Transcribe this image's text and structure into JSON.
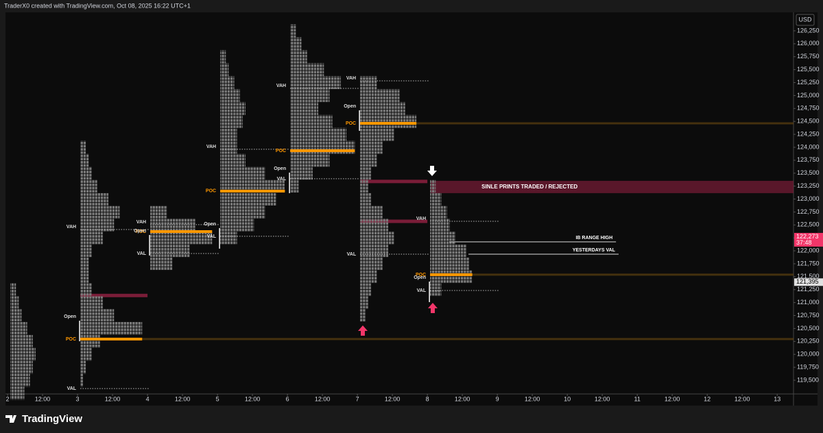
{
  "chart_data": {
    "type": "market-profile",
    "title": "TraderX0 created with TradingView.com, Oct 08, 2025 16:22 UTC+1",
    "currency": "USD",
    "watermark": "TradingView",
    "ylim": [
      119235,
      126607
    ],
    "yticks": [
      {
        "value": 119500,
        "label": "119,500"
      },
      {
        "value": 119750,
        "label": "119,750"
      },
      {
        "value": 120000,
        "label": "120,000"
      },
      {
        "value": 120250,
        "label": "120,250"
      },
      {
        "value": 120500,
        "label": "120,500"
      },
      {
        "value": 120750,
        "label": "120,750"
      },
      {
        "value": 121000,
        "label": "121,000"
      },
      {
        "value": 121250,
        "label": "121,250"
      },
      {
        "value": 121500,
        "label": "121,500"
      },
      {
        "value": 121750,
        "label": "121,750"
      },
      {
        "value": 122000,
        "label": "122,000"
      },
      {
        "value": 122250,
        "label": "122,250"
      },
      {
        "value": 122500,
        "label": "122,500"
      },
      {
        "value": 122750,
        "label": "122,750"
      },
      {
        "value": 123000,
        "label": "123,000"
      },
      {
        "value": 123250,
        "label": "123,250"
      },
      {
        "value": 123500,
        "label": "123,500"
      },
      {
        "value": 123750,
        "label": "123,750"
      },
      {
        "value": 124000,
        "label": "124,000"
      },
      {
        "value": 124250,
        "label": "124,250"
      },
      {
        "value": 124500,
        "label": "124,500"
      },
      {
        "value": 124750,
        "label": "124,750"
      },
      {
        "value": 125000,
        "label": "125,000"
      },
      {
        "value": 125250,
        "label": "125,250"
      },
      {
        "value": 125500,
        "label": "125,500"
      },
      {
        "value": 125750,
        "label": "125,750"
      },
      {
        "value": 126000,
        "label": "126,000"
      },
      {
        "value": 126250,
        "label": "126,250"
      }
    ],
    "xlim": [
      -2.6,
      269.6
    ],
    "xticks": [
      {
        "value": 0,
        "label": "2"
      },
      {
        "value": 12,
        "label": "12:00"
      },
      {
        "value": 24,
        "label": "3"
      },
      {
        "value": 36,
        "label": "12:00"
      },
      {
        "value": 48,
        "label": "4"
      },
      {
        "value": 60,
        "label": "12:00"
      },
      {
        "value": 72,
        "label": "5"
      },
      {
        "value": 84,
        "label": "12:00"
      },
      {
        "value": 96,
        "label": "6"
      },
      {
        "value": 108,
        "label": "12:00"
      },
      {
        "value": 120,
        "label": "7"
      },
      {
        "value": 132,
        "label": "12:00"
      },
      {
        "value": 144,
        "label": "8"
      },
      {
        "value": 156,
        "label": "12:00"
      },
      {
        "value": 168,
        "label": "9"
      },
      {
        "value": 180,
        "label": "12:00"
      },
      {
        "value": 192,
        "label": "10"
      },
      {
        "value": 204,
        "label": "12:00"
      },
      {
        "value": 216,
        "label": "11"
      },
      {
        "value": 228,
        "label": "12:00"
      },
      {
        "value": 240,
        "label": "12"
      },
      {
        "value": 252,
        "label": "12:00"
      },
      {
        "value": 264,
        "label": "13"
      }
    ],
    "level_names": {
      "vah": "VAH",
      "poc": "POC",
      "val": "VAL",
      "open": "Open"
    },
    "profile_color": "#7a7a7a",
    "poc_color": "#ff9800",
    "single_print_color": "#7a1d38",
    "sessions": [
      {
        "x": 0,
        "prices": [
          119250,
          119500,
          119750,
          120000,
          120250,
          120500,
          120750,
          121000,
          121250
        ],
        "counts": [
          5,
          7,
          8,
          9,
          8,
          6,
          4,
          3,
          2
        ]
      },
      {
        "x": 24,
        "prices": [
          119500,
          119750,
          120000,
          120250,
          120500,
          120750,
          121000,
          121250,
          121500,
          121750,
          122000,
          122250,
          122500,
          122750,
          123000,
          123250,
          123500,
          123750,
          124000
        ],
        "counts": [
          1,
          2,
          4,
          7,
          22,
          12,
          8,
          4,
          3,
          3,
          4,
          8,
          12,
          14,
          10,
          6,
          4,
          3,
          2
        ],
        "vah": 122412,
        "poc": 120295,
        "val": 119340,
        "open": 120650,
        "poc_extended": true
      },
      {
        "x": 48,
        "prices": [
          121750,
          122000,
          122250,
          122500,
          122750
        ],
        "counts": [
          8,
          14,
          22,
          16,
          6
        ],
        "vah": 122505,
        "poc": 122372,
        "val": 121949,
        "open": 122306
      },
      {
        "x": 72,
        "prices": [
          122250,
          122500,
          122750,
          123000,
          123250,
          123500,
          123750,
          124000,
          124250,
          124500,
          124750,
          125000,
          125250,
          125500,
          125750
        ],
        "counts": [
          6,
          12,
          16,
          20,
          23,
          16,
          9,
          6,
          6,
          8,
          9,
          7,
          5,
          3,
          2
        ],
        "vah": 123961,
        "poc": 123154,
        "val": 122280,
        "open": 122439
      },
      {
        "x": 96,
        "prices": [
          123250,
          123500,
          123750,
          124000,
          124250,
          124500,
          124750,
          125000,
          125250,
          125500,
          125750,
          126000,
          126250
        ],
        "counts": [
          3,
          8,
          14,
          23,
          20,
          15,
          10,
          14,
          18,
          12,
          6,
          4,
          2
        ],
        "vah": 125138,
        "poc": 123934,
        "val": 123392,
        "open": 123511
      },
      {
        "x": 120,
        "prices": [
          120750,
          121000,
          121250,
          121500,
          121750,
          122000,
          122250,
          122500,
          122750,
          123000,
          123250,
          123500,
          123750,
          124000,
          124250,
          124500,
          124750,
          125000,
          125250
        ],
        "counts": [
          2,
          3,
          4,
          6,
          8,
          10,
          12,
          10,
          8,
          4,
          3,
          4,
          6,
          8,
          12,
          20,
          16,
          14,
          6
        ],
        "vah": 125284,
        "poc": 124463,
        "val": 121935,
        "open": 124715,
        "poc_extended": true
      },
      {
        "x": 144,
        "prices": [
          121250,
          121500,
          121750,
          122000,
          122250,
          122500,
          122750,
          123000,
          123250
        ],
        "counts": [
          4,
          15,
          14,
          13,
          9,
          7,
          6,
          4,
          2
        ],
        "vah": 122571,
        "poc": 121539,
        "val": 121234,
        "open": 121406,
        "poc_extended": true
      }
    ],
    "single_prints": [
      {
        "price": 121137,
        "from": 24,
        "to": 48
      },
      {
        "price": 123340,
        "from": 120,
        "to": 144
      },
      {
        "price": 122570,
        "from": 120,
        "to": 144
      }
    ],
    "band": {
      "text": "SINLE PRINTS TRADED / REJECTED",
      "low": 123114,
      "high": 123352,
      "from": 145,
      "to": 269.6
    },
    "annotations": [
      {
        "text": "IB RANGE HIGH",
        "price": 122174,
        "from": 151.5,
        "to": 208.7
      },
      {
        "text": "YESTERDAYS VAL",
        "price": 121935,
        "from": 158.1,
        "to": 209.6
      }
    ],
    "price_labels": [
      {
        "value": 122273,
        "label": "122,273",
        "countdown": "37:48",
        "color": "#f23669"
      },
      {
        "value": 121395,
        "label": "121,395",
        "color": "#e0e0e0"
      }
    ]
  }
}
